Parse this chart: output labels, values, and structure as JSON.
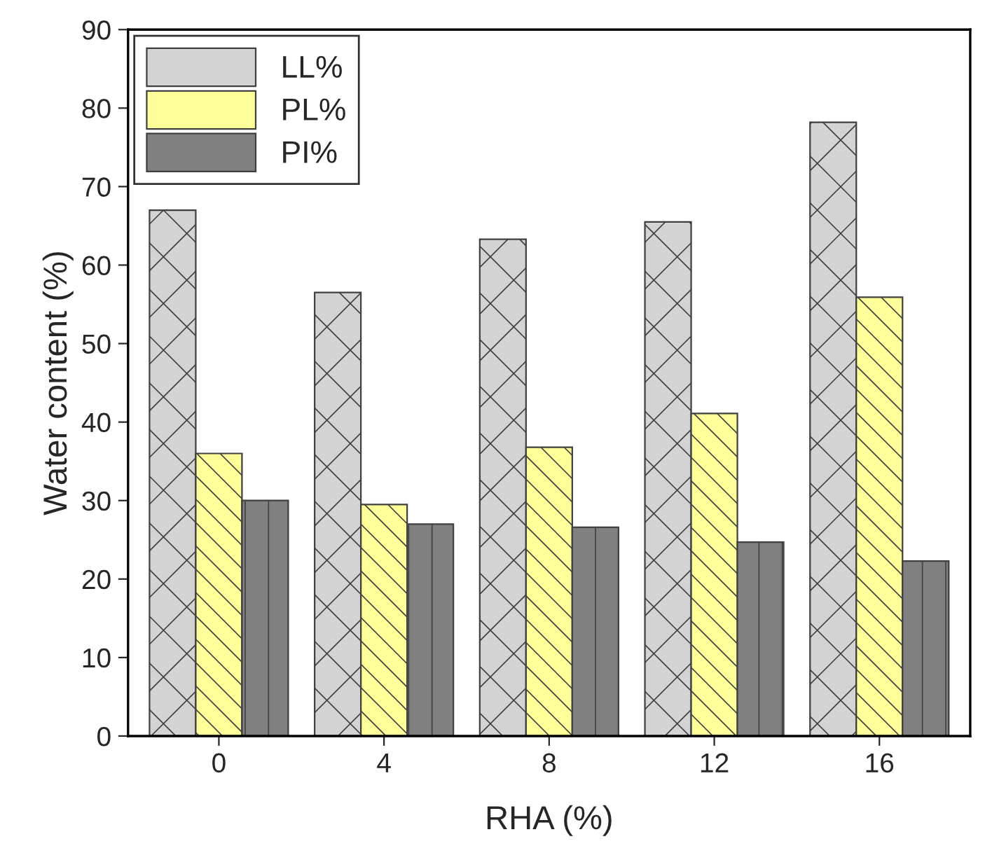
{
  "chart_data": {
    "type": "bar",
    "xlabel": "RHA (%)",
    "ylabel": "Water content (%)",
    "categories": [
      "0",
      "4",
      "8",
      "12",
      "16"
    ],
    "series": [
      {
        "name": "LL%",
        "color": "#d3d3d3",
        "values": [
          67,
          56.5,
          63.3,
          65.5,
          78.2
        ]
      },
      {
        "name": "PL%",
        "color": "#ffff99",
        "values": [
          36,
          29.5,
          36.8,
          41.1,
          55.9
        ]
      },
      {
        "name": "PI%",
        "color": "#808080",
        "values": [
          30,
          27,
          26.6,
          24.7,
          22.3
        ]
      }
    ],
    "ylim": [
      0,
      90
    ],
    "yticks": [
      0,
      10,
      20,
      30,
      40,
      50,
      60,
      70,
      80,
      90
    ],
    "legend": "top left",
    "grid": false
  }
}
